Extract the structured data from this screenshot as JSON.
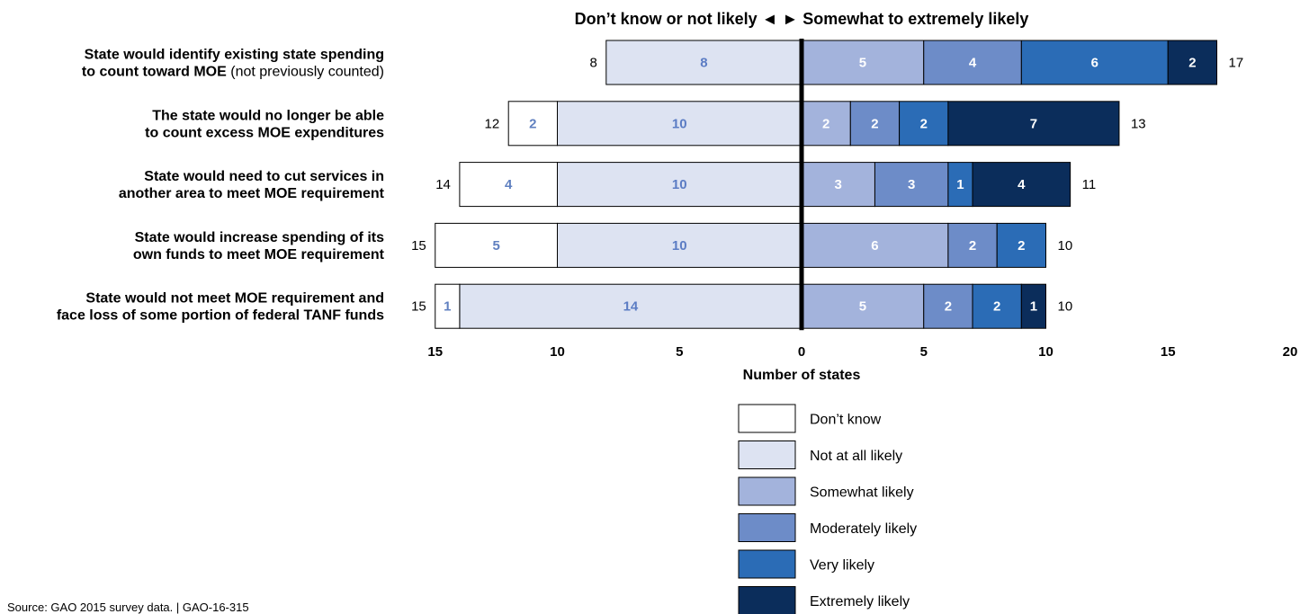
{
  "chart_data": {
    "type": "bar",
    "orientation": "horizontal-diverging",
    "header": "Don’t know or not likely ◄ ► Somewhat to extremely likely",
    "xlabel": "Number of states",
    "xlim": [
      -15,
      20
    ],
    "xticks": [
      {
        "value": -15,
        "label": "15"
      },
      {
        "value": -10,
        "label": "10"
      },
      {
        "value": -5,
        "label": "5"
      },
      {
        "value": 0,
        "label": "0"
      },
      {
        "value": 5,
        "label": "5"
      },
      {
        "value": 10,
        "label": "10"
      },
      {
        "value": 15,
        "label": "15"
      },
      {
        "value": 20,
        "label": "20"
      }
    ],
    "series": [
      {
        "name": "Don’t know",
        "side": "negative",
        "color": "#ffffff",
        "text_color": "#6080c0"
      },
      {
        "name": "Not at all likely",
        "side": "negative",
        "color": "#dde3f2",
        "text_color": "#5b7cc4"
      },
      {
        "name": "Somewhat likely",
        "side": "positive",
        "color": "#a3b3dc",
        "text_color": "#ffffff"
      },
      {
        "name": "Moderately likely",
        "side": "positive",
        "color": "#6d8cc8",
        "text_color": "#ffffff"
      },
      {
        "name": "Very likely",
        "side": "positive",
        "color": "#2b6cb6",
        "text_color": "#ffffff"
      },
      {
        "name": "Extremely likely",
        "side": "positive",
        "color": "#0b2d5b",
        "text_color": "#ffffff"
      }
    ],
    "categories": [
      {
        "lines": [
          [
            {
              "text": "State would identify existing state spending",
              "bold": true
            }
          ],
          [
            {
              "text": "to count toward MOE",
              "bold": true
            },
            {
              "text": " (not previously counted)",
              "bold": false
            }
          ]
        ],
        "values": [
          0,
          8,
          5,
          4,
          6,
          2
        ],
        "total_negative": "8",
        "total_positive": "17"
      },
      {
        "lines": [
          [
            {
              "text": "The state would no longer be able",
              "bold": true
            }
          ],
          [
            {
              "text": "to count excess MOE expenditures",
              "bold": true
            }
          ]
        ],
        "values": [
          2,
          10,
          2,
          2,
          2,
          7
        ],
        "total_negative": "12",
        "total_positive": "13"
      },
      {
        "lines": [
          [
            {
              "text": "State would need to cut services in",
              "bold": true
            }
          ],
          [
            {
              "text": "another area to meet MOE requirement",
              "bold": true
            }
          ]
        ],
        "values": [
          4,
          10,
          3,
          3,
          1,
          4
        ],
        "total_negative": "14",
        "total_positive": "11"
      },
      {
        "lines": [
          [
            {
              "text": "State would increase spending of its",
              "bold": true
            }
          ],
          [
            {
              "text": "own funds to meet MOE requirement",
              "bold": true
            }
          ]
        ],
        "values": [
          5,
          10,
          6,
          2,
          2,
          0
        ],
        "total_negative": "15",
        "total_positive": "10"
      },
      {
        "lines": [
          [
            {
              "text": "State would not meet MOE requirement and",
              "bold": true
            }
          ],
          [
            {
              "text": "face loss of some portion of federal TANF funds",
              "bold": true
            }
          ]
        ],
        "values": [
          1,
          14,
          5,
          2,
          2,
          1
        ],
        "total_negative": "15",
        "total_positive": "10"
      }
    ],
    "legend": {
      "placement": "bottom-center",
      "order": [
        "Don’t know",
        "Not at all likely",
        "Somewhat likely",
        "Moderately likely",
        "Very likely",
        "Extremely likely"
      ]
    },
    "source": "Source: GAO 2015 survey data.  |  GAO-16-315",
    "grid": false
  }
}
